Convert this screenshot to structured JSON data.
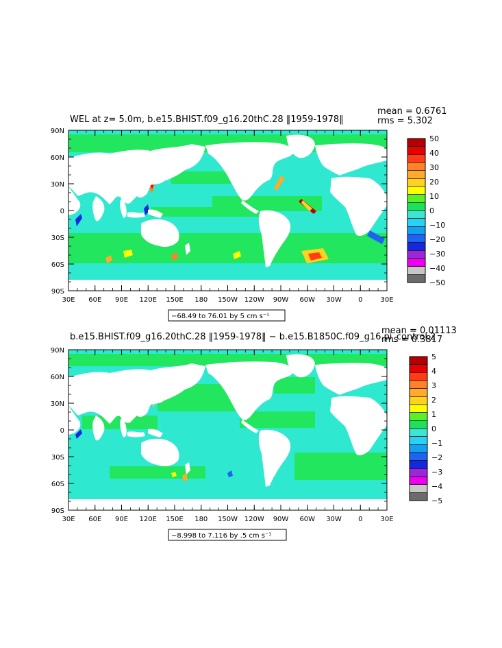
{
  "panels": [
    {
      "title": "WEL at z=    5.0m, b.e15.BHIST.f09_g16.20thC.28 ‖1959-1978‖",
      "mean": "mean = 0.6761",
      "rms": "rms = 5.302",
      "range_text": "−68.49 to 76.01 by 5 cm s⁻¹",
      "colorbar_labels": [
        "50",
        "40",
        "30",
        "20",
        "10",
        "0",
        "−10",
        "−20",
        "−30",
        "−40",
        "−50"
      ]
    },
    {
      "title": "b.e15.BHIST.f09_g16.20thC.28 ‖1959-1978‖ − b.e15.B1850C.f09_g16.pi_control.2",
      "mean": "mean = 0.01113",
      "rms": "rms = 0.3817",
      "range_text": "−8.998 to 7.116 by .5 cm s⁻¹",
      "colorbar_labels": [
        "5",
        "4",
        "3",
        "2",
        "1",
        "0",
        "−1",
        "−2",
        "−3",
        "−4",
        "−5"
      ]
    }
  ],
  "axes": {
    "lat_labels": [
      "90N",
      "60N",
      "30N",
      "0",
      "30S",
      "60S",
      "90S"
    ],
    "lon_labels": [
      "30E",
      "60E",
      "90E",
      "120E",
      "150E",
      "180",
      "150W",
      "120W",
      "90W",
      "60W",
      "30W",
      "0",
      "30E"
    ]
  },
  "colors": {
    "scale": [
      "#6b6b6b",
      "#c8c8c8",
      "#ee00ee",
      "#9a28d6",
      "#1428e0",
      "#1e64f0",
      "#14a0f0",
      "#28d2f5",
      "#3ce6d2",
      "#1ee15a",
      "#5af028",
      "#ffff00",
      "#ffd21e",
      "#ffaa28",
      "#ff8228",
      "#ff3c14",
      "#e60000",
      "#b40000"
    ],
    "ocean_base": "#2ee8d0",
    "ocean_green": "#22e65e",
    "land": "#ffffff"
  }
}
